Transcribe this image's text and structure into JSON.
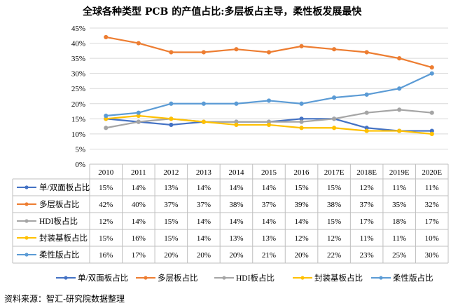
{
  "chart_data": {
    "type": "line",
    "title": "全球各种类型 PCB 的产值占比:多层板占主导，柔性板发展最快",
    "categories": [
      "2010",
      "2011",
      "2012",
      "2013",
      "2014",
      "2015",
      "2016",
      "2017E",
      "2018E",
      "2019E",
      "2020E"
    ],
    "ylim": [
      0,
      45
    ],
    "yticks": [
      "0%",
      "5%",
      "10%",
      "15%",
      "20%",
      "25%",
      "30%",
      "35%",
      "40%",
      "45%"
    ],
    "grid": true,
    "legend_position": "bottom",
    "series": [
      {
        "name": "单/双面板占比",
        "color": "#4472C4",
        "values": [
          15,
          14,
          13,
          14,
          14,
          14,
          15,
          15,
          12,
          11,
          11
        ],
        "labels": [
          "15%",
          "14%",
          "13%",
          "14%",
          "14%",
          "14%",
          "15%",
          "15%",
          "12%",
          "11%",
          "11%"
        ]
      },
      {
        "name": "多层板占比",
        "color": "#ED7D31",
        "values": [
          42,
          40,
          37,
          37,
          38,
          37,
          39,
          38,
          37,
          35,
          32
        ],
        "labels": [
          "42%",
          "40%",
          "37%",
          "37%",
          "38%",
          "37%",
          "39%",
          "38%",
          "37%",
          "35%",
          "32%"
        ]
      },
      {
        "name": "HDI板占比",
        "color": "#A5A5A5",
        "values": [
          12,
          14,
          15,
          14,
          14,
          14,
          14,
          15,
          17,
          18,
          17
        ],
        "labels": [
          "12%",
          "14%",
          "15%",
          "14%",
          "14%",
          "14%",
          "14%",
          "15%",
          "17%",
          "18%",
          "17%"
        ]
      },
      {
        "name": "封装基板占比",
        "color": "#FFC000",
        "values": [
          15,
          16,
          15,
          14,
          13,
          13,
          12,
          12,
          11,
          11,
          10
        ],
        "labels": [
          "15%",
          "16%",
          "15%",
          "14%",
          "13%",
          "13%",
          "12%",
          "12%",
          "11%",
          "11%",
          "10%"
        ]
      },
      {
        "name": "柔性版占比",
        "color": "#5B9BD5",
        "values": [
          16,
          17,
          20,
          20,
          20,
          21,
          20,
          22,
          23,
          25,
          30
        ],
        "labels": [
          "16%",
          "17%",
          "20%",
          "20%",
          "20%",
          "21%",
          "20%",
          "22%",
          "23%",
          "25%",
          "30%"
        ]
      }
    ]
  },
  "source": "资料来源：智汇-研究院数据整理"
}
